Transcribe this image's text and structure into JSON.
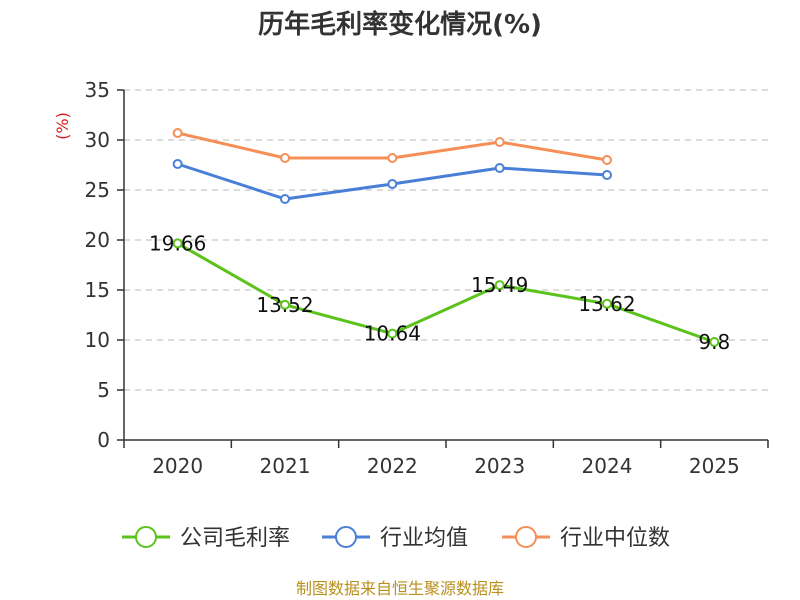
{
  "chart_data": {
    "type": "line",
    "title": "历年毛利率变化情况(%)",
    "ylabel": "(%)",
    "categories": [
      "2020",
      "2021",
      "2022",
      "2023",
      "2024",
      "2025"
    ],
    "ylim": [
      0,
      35
    ],
    "yticks": [
      0,
      5,
      10,
      15,
      20,
      25,
      30,
      35
    ],
    "grid": true,
    "legend_position": "bottom",
    "series": [
      {
        "name": "公司毛利率",
        "color": "#5cc21c",
        "values": [
          19.66,
          13.52,
          10.64,
          15.49,
          13.62,
          9.8
        ],
        "labels": [
          "19.66",
          "13.52",
          "10.64",
          "15.49",
          "13.62",
          "9.8"
        ]
      },
      {
        "name": "行业均值",
        "color": "#4a7fd8",
        "values": [
          27.6,
          24.1,
          25.6,
          27.2,
          26.5,
          null
        ]
      },
      {
        "name": "行业中位数",
        "color": "#f58f57",
        "values": [
          30.7,
          28.2,
          28.2,
          29.8,
          28.0,
          null
        ]
      }
    ],
    "source": "制图数据来自恒生聚源数据库"
  }
}
